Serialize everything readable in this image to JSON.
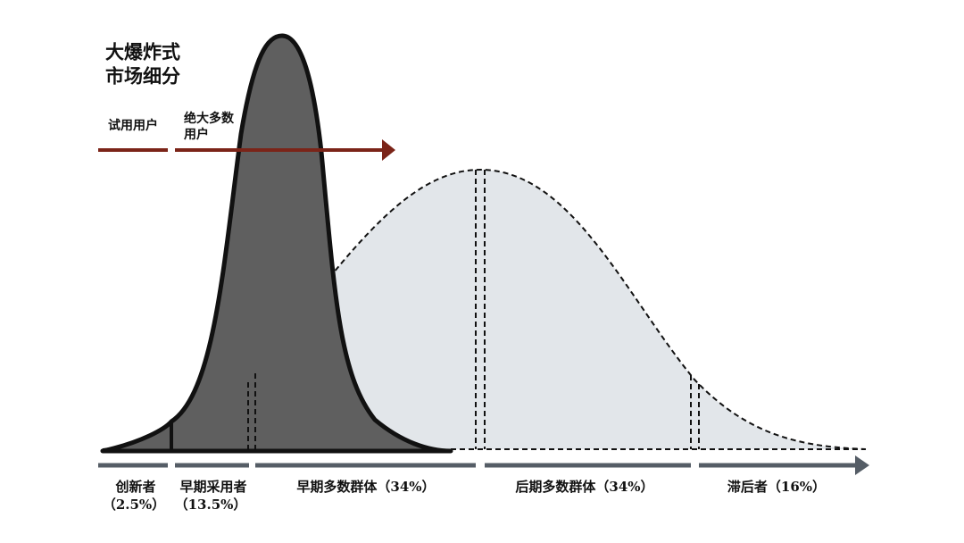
{
  "title": [
    "大爆炸式",
    "市场细分"
  ],
  "arrow_labels": {
    "trial": "试用用户",
    "majority": [
      "绝大多数",
      "用户"
    ]
  },
  "segments": [
    {
      "name": "创新者",
      "share": "（2.5%）"
    },
    {
      "name": "早期采用者",
      "share": "（13.5%）"
    },
    {
      "name": "早期多数群体（34%）"
    },
    {
      "name": "后期多数群体（34%）"
    },
    {
      "name": "滞后者（16%）"
    }
  ]
}
